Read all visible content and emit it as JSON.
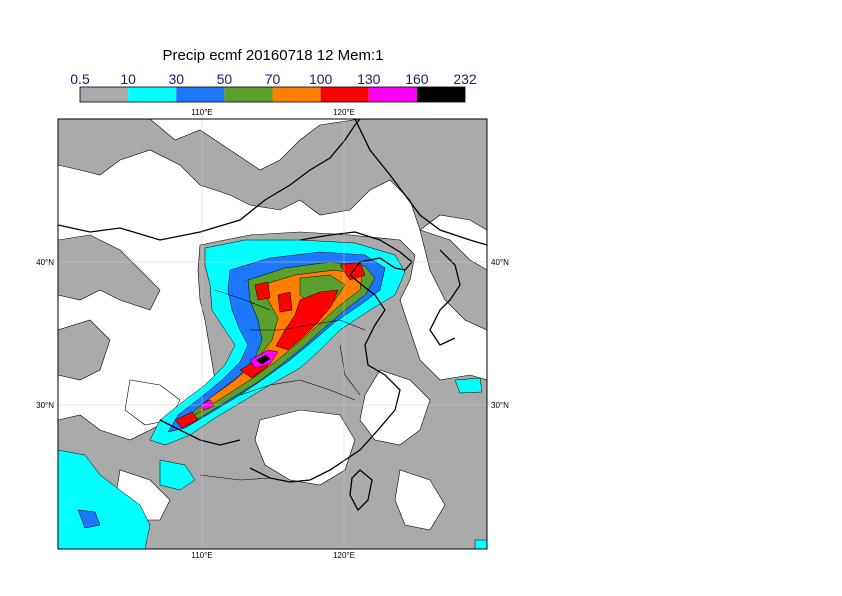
{
  "title": "Precip ecmf 20160718 12 Mem:1",
  "legend": {
    "labels": [
      "0.5",
      "10",
      "30",
      "50",
      "70",
      "100",
      "130",
      "160",
      "232"
    ],
    "colors": [
      "#aaaaaa",
      "#00ffff",
      "#1e78ff",
      "#5aa02d",
      "#ff8000",
      "#ff0000",
      "#ff00ff",
      "#000000"
    ]
  },
  "axes": {
    "top_ticks": [
      "110°E",
      "120°E"
    ],
    "bottom_ticks": [
      "110°E",
      "120°E"
    ],
    "left_ticks": [
      "40°N",
      "30°N"
    ],
    "right_ticks": [
      "40°N",
      "30°N"
    ]
  }
}
